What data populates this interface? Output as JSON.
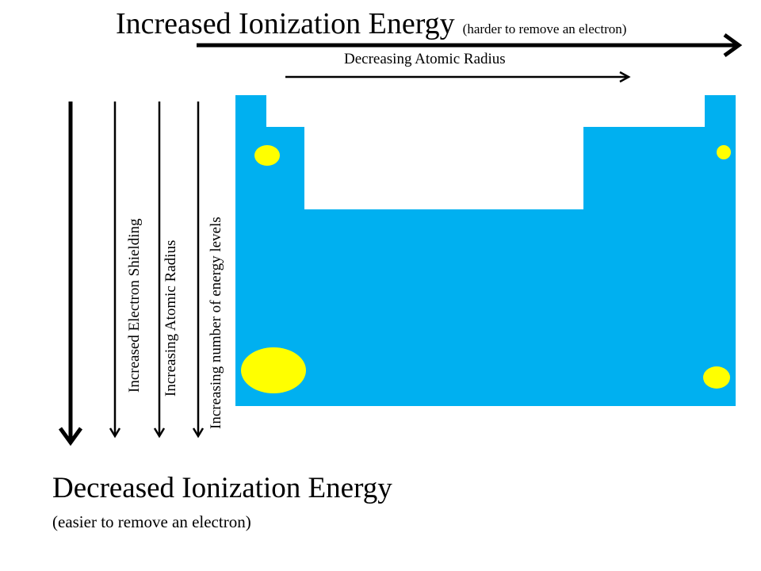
{
  "top": {
    "title": "Increased Ionization Energy",
    "note": "(harder to remove an electron)",
    "radius_label": "Decreasing Atomic Radius"
  },
  "side_labels": {
    "shielding": "Increased Electron Shielding",
    "radius": "Increasing Atomic Radius",
    "energy_levels": "Increasing number of energy levels"
  },
  "bottom": {
    "title": "Decreased Ionization Energy",
    "note": "(easier to remove an electron)"
  },
  "colors": {
    "table_fill": "#00b0f0",
    "atom_fill": "#ffff00",
    "arrow": "#000000"
  }
}
